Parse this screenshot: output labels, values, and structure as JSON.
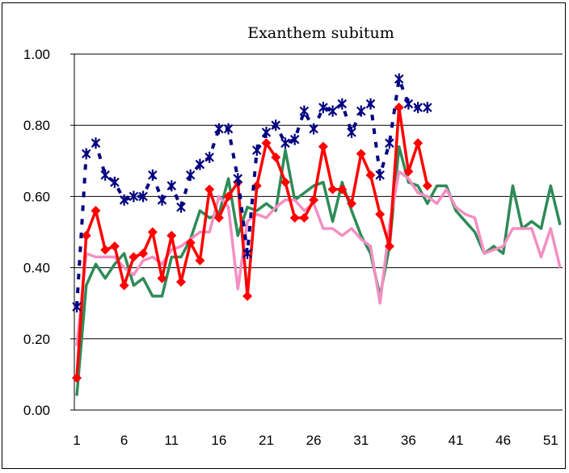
{
  "chart_data": {
    "type": "line",
    "title": "Exanthem subitum",
    "xlabel": "",
    "ylabel": "",
    "ylim": [
      0,
      1
    ],
    "y_ticks": [
      "0.00",
      "0.20",
      "0.40",
      "0.60",
      "0.80",
      "1.00"
    ],
    "y_tick_values": [
      0,
      0.2,
      0.4,
      0.6,
      0.8,
      1.0
    ],
    "x_ticks": [
      "1",
      "6",
      "11",
      "16",
      "21",
      "26",
      "31",
      "36",
      "41",
      "46",
      "51"
    ],
    "x_tick_values": [
      1,
      6,
      11,
      16,
      21,
      26,
      31,
      36,
      41,
      46,
      51
    ],
    "xlim": [
      1,
      52
    ],
    "grid": "horizontal",
    "legend": "none",
    "series": [
      {
        "style": "dashed-star",
        "color": "#000080",
        "x": [
          1,
          2,
          3,
          4,
          5,
          6,
          7,
          8,
          9,
          10,
          11,
          12,
          13,
          14,
          15,
          16,
          17,
          18,
          19,
          20,
          21,
          22,
          23,
          24,
          25,
          26,
          27,
          28,
          29,
          30,
          31,
          32,
          33,
          34,
          35,
          36,
          37,
          38
        ],
        "values": [
          0.29,
          0.72,
          0.75,
          0.66,
          0.64,
          0.59,
          0.6,
          0.6,
          0.66,
          0.59,
          0.63,
          0.57,
          0.66,
          0.69,
          0.71,
          0.79,
          0.79,
          0.65,
          0.44,
          0.73,
          0.78,
          0.8,
          0.75,
          0.76,
          0.84,
          0.79,
          0.85,
          0.84,
          0.86,
          0.78,
          0.84,
          0.86,
          0.66,
          0.75,
          0.93,
          0.86,
          0.85,
          0.85
        ]
      },
      {
        "style": "line-diamond",
        "color": "#ff0000",
        "x": [
          1,
          2,
          3,
          4,
          5,
          6,
          7,
          8,
          9,
          10,
          11,
          12,
          13,
          14,
          15,
          16,
          17,
          18,
          19,
          20,
          21,
          22,
          23,
          24,
          25,
          26,
          27,
          28,
          29,
          30,
          31,
          32,
          33,
          34,
          35,
          36,
          37,
          38
        ],
        "values": [
          0.09,
          0.49,
          0.56,
          0.45,
          0.46,
          0.35,
          0.43,
          0.44,
          0.5,
          0.37,
          0.49,
          0.36,
          0.47,
          0.42,
          0.62,
          0.54,
          0.6,
          0.64,
          0.32,
          0.63,
          0.75,
          0.71,
          0.64,
          0.54,
          0.54,
          0.59,
          0.74,
          0.62,
          0.62,
          0.58,
          0.72,
          0.66,
          0.55,
          0.46,
          0.85,
          0.67,
          0.75,
          0.63
        ]
      },
      {
        "style": "line",
        "color": "#2e8b57",
        "x": [
          1,
          2,
          3,
          4,
          5,
          6,
          7,
          8,
          9,
          10,
          11,
          12,
          13,
          14,
          15,
          16,
          17,
          18,
          19,
          20,
          21,
          22,
          23,
          24,
          25,
          26,
          27,
          28,
          29,
          30,
          31,
          32,
          33,
          34,
          35,
          36,
          37,
          38,
          39,
          40,
          41,
          42,
          43,
          44,
          45,
          46,
          47,
          48,
          49,
          50,
          51,
          52
        ],
        "values": [
          0.04,
          0.35,
          0.41,
          0.37,
          0.41,
          0.44,
          0.35,
          0.37,
          0.32,
          0.32,
          0.43,
          0.43,
          0.48,
          0.56,
          0.54,
          0.55,
          0.65,
          0.49,
          0.57,
          0.56,
          0.58,
          0.56,
          0.73,
          0.59,
          0.61,
          0.63,
          0.64,
          0.53,
          0.64,
          0.56,
          0.49,
          0.44,
          0.32,
          0.46,
          0.74,
          0.64,
          0.63,
          0.58,
          0.63,
          0.63,
          0.56,
          0.53,
          0.5,
          0.44,
          0.46,
          0.44,
          0.63,
          0.51,
          0.53,
          0.51,
          0.63,
          0.52
        ]
      },
      {
        "style": "line",
        "color": "#f48fc2",
        "x": [
          1,
          2,
          3,
          4,
          5,
          6,
          7,
          8,
          9,
          10,
          11,
          12,
          13,
          14,
          15,
          16,
          17,
          18,
          19,
          20,
          21,
          22,
          23,
          24,
          25,
          26,
          27,
          28,
          29,
          30,
          31,
          32,
          33,
          34,
          35,
          36,
          37,
          38,
          39,
          40,
          41,
          42,
          43,
          44,
          45,
          46,
          47,
          48,
          49,
          50,
          51,
          52
        ],
        "values": [
          0.18,
          0.44,
          0.43,
          0.43,
          0.43,
          0.4,
          0.38,
          0.42,
          0.43,
          0.41,
          0.45,
          0.46,
          0.48,
          0.5,
          0.5,
          0.6,
          0.57,
          0.34,
          0.53,
          0.55,
          0.54,
          0.57,
          0.59,
          0.59,
          0.56,
          0.58,
          0.51,
          0.51,
          0.49,
          0.51,
          0.48,
          0.46,
          0.3,
          0.52,
          0.67,
          0.65,
          0.61,
          0.6,
          0.58,
          0.62,
          0.57,
          0.55,
          0.54,
          0.44,
          0.45,
          0.46,
          0.51,
          0.51,
          0.51,
          0.43,
          0.51,
          0.4
        ]
      }
    ]
  }
}
